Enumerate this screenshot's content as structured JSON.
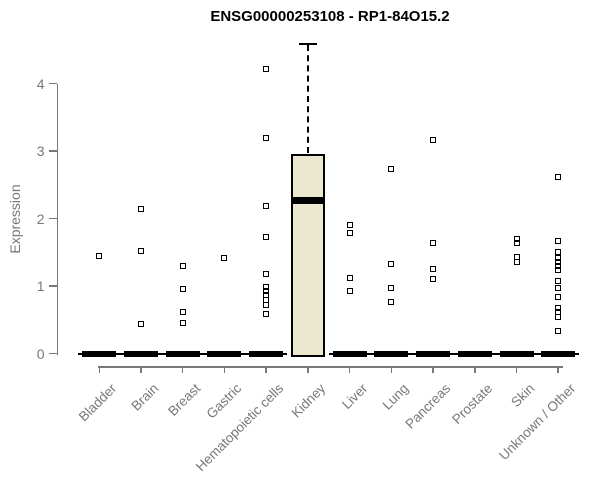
{
  "chart_data": {
    "type": "boxplot",
    "title": "ENSG00000253108 - RP1-84O15.2",
    "ylabel": "Expression",
    "xlabel": "",
    "ylim": [
      0,
      4.7
    ],
    "yticks": [
      0,
      1,
      2,
      3,
      4
    ],
    "grid": false,
    "legend": false,
    "marker": "open-square",
    "colors": {
      "box_fill": "#ece8d0",
      "box_border": "#000000",
      "median": "#000000",
      "axis": "#787878",
      "tick_label": "#787878",
      "title": "#000000",
      "background": "#ffffff"
    },
    "categories": [
      "Bladder",
      "Brain",
      "Breast",
      "Gastric",
      "Hematopoietic cells",
      "Kidney",
      "Liver",
      "Lung",
      "Pancreas",
      "Prostate",
      "Skin",
      "Unknown / Other"
    ],
    "boxes": [
      {
        "category": "Bladder",
        "median": 0,
        "q1": 0,
        "q3": 0,
        "whisker_low": 0,
        "whisker_high": 0,
        "outliers": [
          1.45
        ]
      },
      {
        "category": "Brain",
        "median": 0,
        "q1": 0,
        "q3": 0,
        "whisker_low": 0,
        "whisker_high": 0,
        "outliers": [
          2.14,
          1.52,
          0.44
        ]
      },
      {
        "category": "Breast",
        "median": 0,
        "q1": 0,
        "q3": 0,
        "whisker_low": 0,
        "whisker_high": 0,
        "outliers": [
          1.29,
          0.96,
          0.61,
          0.45
        ]
      },
      {
        "category": "Gastric",
        "median": 0,
        "q1": 0,
        "q3": 0,
        "whisker_low": 0,
        "whisker_high": 0,
        "outliers": [
          1.41
        ]
      },
      {
        "category": "Hematopoietic cells",
        "median": 0,
        "q1": 0,
        "q3": 0,
        "whisker_low": 0,
        "whisker_high": 0,
        "outliers": [
          4.21,
          3.2,
          2.19,
          1.72,
          1.18,
          0.98,
          0.92,
          0.86,
          0.79,
          0.72,
          0.59
        ]
      },
      {
        "category": "Kidney",
        "median": 2.27,
        "q1": 0,
        "q3": 2.95,
        "whisker_low": 0,
        "whisker_high": 4.59,
        "outliers": []
      },
      {
        "category": "Liver",
        "median": 0,
        "q1": 0,
        "q3": 0,
        "whisker_low": 0,
        "whisker_high": 0,
        "outliers": [
          1.9,
          1.78,
          1.12,
          0.92
        ]
      },
      {
        "category": "Lung",
        "median": 0,
        "q1": 0,
        "q3": 0,
        "whisker_low": 0,
        "whisker_high": 0,
        "outliers": [
          2.73,
          1.33,
          0.97,
          0.76
        ]
      },
      {
        "category": "Pancreas",
        "median": 0,
        "q1": 0,
        "q3": 0,
        "whisker_low": 0,
        "whisker_high": 0,
        "outliers": [
          3.17,
          1.64,
          1.25,
          1.11
        ]
      },
      {
        "category": "Prostate",
        "median": 0,
        "q1": 0,
        "q3": 0,
        "whisker_low": 0,
        "whisker_high": 0,
        "outliers": []
      },
      {
        "category": "Skin",
        "median": 0,
        "q1": 0,
        "q3": 0,
        "whisker_low": 0,
        "whisker_high": 0,
        "outliers": [
          1.7,
          1.63,
          1.43,
          1.35
        ]
      },
      {
        "category": "Unknown / Other",
        "median": 0,
        "q1": 0,
        "q3": 0,
        "whisker_low": 0,
        "whisker_high": 0,
        "outliers": [
          2.61,
          1.67,
          1.51,
          1.42,
          1.36,
          1.3,
          1.24,
          1.08,
          0.97,
          0.83,
          0.67,
          0.61,
          0.54,
          0.33
        ]
      }
    ]
  }
}
